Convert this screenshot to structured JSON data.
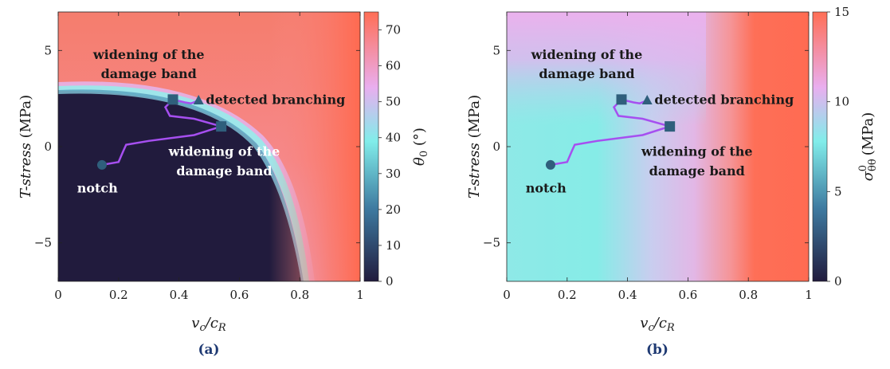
{
  "chart_data": [
    {
      "type": "heatmap",
      "panel_label": "(a)",
      "xlabel_base": "v",
      "xlabel_sub1": "c",
      "xlabel_mid": "/c",
      "xlabel_sub2": "R",
      "ylabel_italic": "T-stress",
      "ylabel_unit": " (MPa)",
      "xlim": [
        0,
        1
      ],
      "ylim": [
        -7,
        7
      ],
      "xticks": [
        "0",
        "0.2",
        "0.4",
        "0.6",
        "0.8",
        "1"
      ],
      "yticks": [
        "−5",
        "0",
        "5"
      ],
      "colorbar": {
        "label_symbol": "θ",
        "label_sub": "0",
        "label_unit": " (°)",
        "range": [
          0,
          75
        ],
        "ticks": [
          "0",
          "10",
          "20",
          "30",
          "40",
          "50",
          "60",
          "70"
        ],
        "colors": [
          "#211b3d",
          "#3e7aa0",
          "#81edea",
          "#e9aeef",
          "#ff6e55"
        ]
      },
      "markers": [
        {
          "name": "notch",
          "shape": "circle",
          "x": 0.145,
          "y": -0.95
        },
        {
          "name": "widening-1",
          "shape": "square",
          "x": 0.54,
          "y": 1.05
        },
        {
          "name": "widening-2",
          "shape": "square",
          "x": 0.38,
          "y": 2.45
        },
        {
          "name": "branching",
          "shape": "triangle",
          "x": 0.465,
          "y": 2.4
        }
      ],
      "crack_path": [
        [
          0.145,
          -0.95
        ],
        [
          0.2,
          -0.8
        ],
        [
          0.215,
          -0.25
        ],
        [
          0.225,
          0.1
        ],
        [
          0.3,
          0.3
        ],
        [
          0.45,
          0.6
        ],
        [
          0.54,
          1.05
        ],
        [
          0.45,
          1.45
        ],
        [
          0.37,
          1.6
        ],
        [
          0.355,
          2.05
        ],
        [
          0.38,
          2.45
        ],
        [
          0.42,
          2.3
        ],
        [
          0.44,
          2.25
        ],
        [
          0.465,
          2.4
        ]
      ],
      "annotations": [
        {
          "text": "widening of the",
          "x": 0.3,
          "y": 4.75,
          "color": "#1a1a1a"
        },
        {
          "text": "damage band",
          "x": 0.3,
          "y": 3.75,
          "color": "#1a1a1a"
        },
        {
          "text": "detected branching",
          "x": 0.72,
          "y": 2.4,
          "color": "#1a1a1a"
        },
        {
          "text": "widening of the",
          "x": 0.55,
          "y": -0.3,
          "color": "#ffffff"
        },
        {
          "text": "damage band",
          "x": 0.55,
          "y": -1.3,
          "color": "#ffffff"
        },
        {
          "text": "notch",
          "x": 0.13,
          "y": -2.2,
          "color": "#ffffff"
        }
      ]
    },
    {
      "type": "heatmap",
      "panel_label": "(b)",
      "xlabel_base": "v",
      "xlabel_sub1": "c",
      "xlabel_mid": "/c",
      "xlabel_sub2": "R",
      "ylabel_italic": "T-stress",
      "ylabel_unit": " (MPa)",
      "xlim": [
        0,
        1
      ],
      "ylim": [
        -7,
        7
      ],
      "xticks": [
        "0",
        "0.2",
        "0.4",
        "0.6",
        "0.8",
        "1"
      ],
      "yticks": [
        "−5",
        "0",
        "5"
      ],
      "colorbar": {
        "label_symbol": "σ",
        "label_sub": "θθ",
        "label_sup": "0",
        "label_unit": " (MPa)",
        "range": [
          0,
          15
        ],
        "ticks": [
          "0",
          "5",
          "10",
          "15"
        ],
        "colors": [
          "#211b3d",
          "#3e7aa0",
          "#81edea",
          "#e9aeef",
          "#ff6e55"
        ]
      },
      "markers": [
        {
          "name": "notch",
          "shape": "circle",
          "x": 0.145,
          "y": -0.95
        },
        {
          "name": "widening-1",
          "shape": "square",
          "x": 0.54,
          "y": 1.05
        },
        {
          "name": "widening-2",
          "shape": "square",
          "x": 0.38,
          "y": 2.45
        },
        {
          "name": "branching",
          "shape": "triangle",
          "x": 0.465,
          "y": 2.4
        }
      ],
      "crack_path": [
        [
          0.145,
          -0.95
        ],
        [
          0.2,
          -0.8
        ],
        [
          0.215,
          -0.25
        ],
        [
          0.225,
          0.1
        ],
        [
          0.3,
          0.3
        ],
        [
          0.45,
          0.6
        ],
        [
          0.54,
          1.05
        ],
        [
          0.45,
          1.45
        ],
        [
          0.37,
          1.6
        ],
        [
          0.355,
          2.05
        ],
        [
          0.38,
          2.45
        ],
        [
          0.42,
          2.3
        ],
        [
          0.44,
          2.25
        ],
        [
          0.465,
          2.4
        ]
      ],
      "annotations": [
        {
          "text": "widening of the",
          "x": 0.265,
          "y": 4.75,
          "color": "#1a1a1a"
        },
        {
          "text": "damage band",
          "x": 0.265,
          "y": 3.75,
          "color": "#1a1a1a"
        },
        {
          "text": "detected branching",
          "x": 0.72,
          "y": 2.4,
          "color": "#1a1a1a"
        },
        {
          "text": "widening of the",
          "x": 0.63,
          "y": -0.3,
          "color": "#1a1a1a"
        },
        {
          "text": "damage band",
          "x": 0.63,
          "y": -1.3,
          "color": "#1a1a1a"
        },
        {
          "text": "notch",
          "x": 0.13,
          "y": -2.2,
          "color": "#1a1a1a"
        }
      ]
    }
  ]
}
